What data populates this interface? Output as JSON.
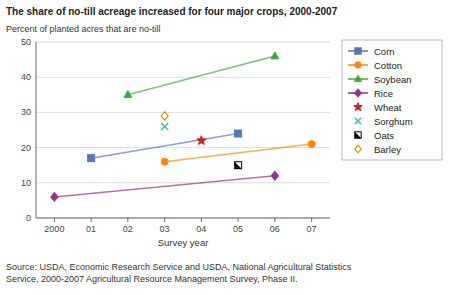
{
  "chart_data": {
    "type": "scatter",
    "title": "The share of no-till acreage increased for four major crops, 2000-2007",
    "y_label": "Percent of planted acres that are no-till",
    "x_label": "Survey year",
    "annotations": [
      "Source:  USDA, Economic Research Service and USDA, National Agricultural Statistics",
      "Service, 2000-2007 Agricultural Resource Management Survey, Phase II."
    ],
    "xlim": [
      1999.5,
      2007.5
    ],
    "xticks": [
      2000,
      {
        "value": 2001,
        "label": "01"
      },
      {
        "value": 2002,
        "label": "02"
      },
      {
        "value": 2003,
        "label": "03"
      },
      {
        "value": 2004,
        "label": "04"
      },
      {
        "value": 2005,
        "label": "05"
      },
      {
        "value": 2006,
        "label": "06"
      },
      {
        "value": 2007,
        "label": "07"
      }
    ],
    "ylim": [
      0,
      50
    ],
    "yticks": [
      0,
      10,
      20,
      30,
      40,
      50
    ],
    "grid": true,
    "legend": "upper right",
    "series": [
      {
        "name": "Corn",
        "color": "#5577bb",
        "marker": "square",
        "line_style": "solid",
        "x": [
          2001,
          2005
        ],
        "values": [
          17,
          24
        ]
      },
      {
        "name": "Cotton",
        "color": "#ff8800",
        "marker": "circle",
        "line_style": "solid",
        "x": [
          2003,
          2007
        ],
        "values": [
          16,
          21
        ]
      },
      {
        "name": "Soybean",
        "color": "#44aa44",
        "marker": "triangle",
        "line_style": "solid",
        "x": [
          2002,
          2006
        ],
        "values": [
          35,
          46
        ]
      },
      {
        "name": "Rice",
        "color": "#993388",
        "marker": "diamond",
        "line_style": "solid",
        "x": [
          2000,
          2006
        ],
        "values": [
          6,
          12
        ]
      },
      {
        "name": "Wheat",
        "color": "#cc2222",
        "marker": "star",
        "line_style": "none",
        "x": [
          2004
        ],
        "values": [
          22
        ]
      },
      {
        "name": "Sorghum",
        "color": "#44bbbb",
        "marker": "x",
        "line_style": "none",
        "x": [
          2003
        ],
        "values": [
          26
        ]
      },
      {
        "name": "Oats",
        "color": "#000000",
        "marker": "square-half",
        "line_style": "none",
        "x": [
          2005
        ],
        "values": [
          15
        ]
      },
      {
        "name": "Barley",
        "color": "#cc9900",
        "marker": "diamond-open",
        "line_style": "none",
        "x": [
          2003
        ],
        "values": [
          29
        ]
      }
    ]
  }
}
